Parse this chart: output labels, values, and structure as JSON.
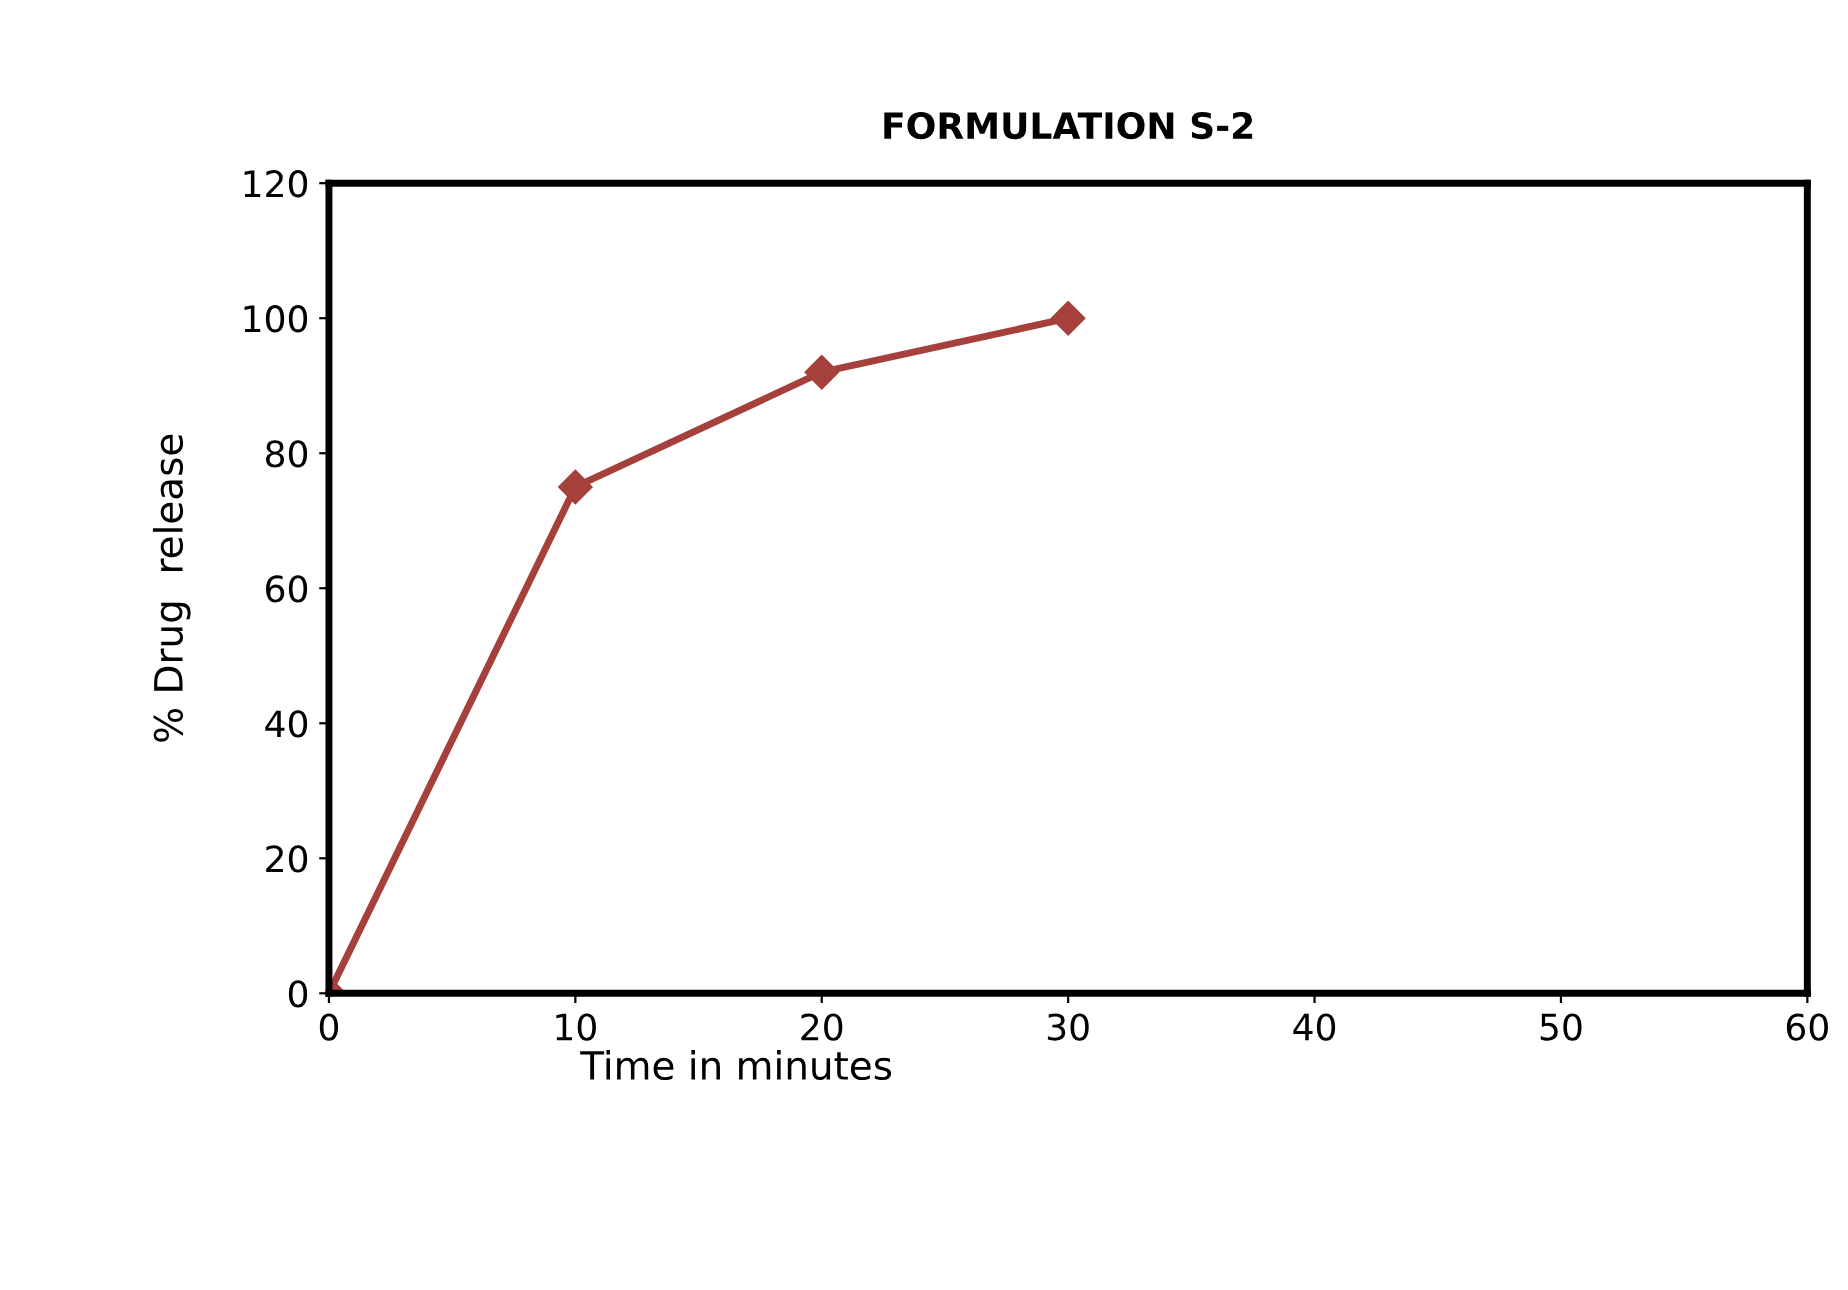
{
  "chart_data": {
    "type": "line",
    "title": "FORMULATION S-2",
    "xlabel": "Time in minutes",
    "ylabel": "% Drug  release",
    "x": [
      0,
      10,
      20,
      30
    ],
    "series": [
      {
        "color": "#a5403d",
        "values": [
          0,
          75,
          92,
          100
        ]
      }
    ],
    "xlim": [
      0,
      60
    ],
    "xticks": [
      0,
      10,
      20,
      30,
      40,
      50,
      60
    ],
    "ylim": [
      0,
      120
    ],
    "yticks": [
      0,
      20,
      40,
      60,
      80,
      100,
      120
    ],
    "grid": false,
    "legend": false,
    "marker": "diamond",
    "line_style": "solid"
  }
}
